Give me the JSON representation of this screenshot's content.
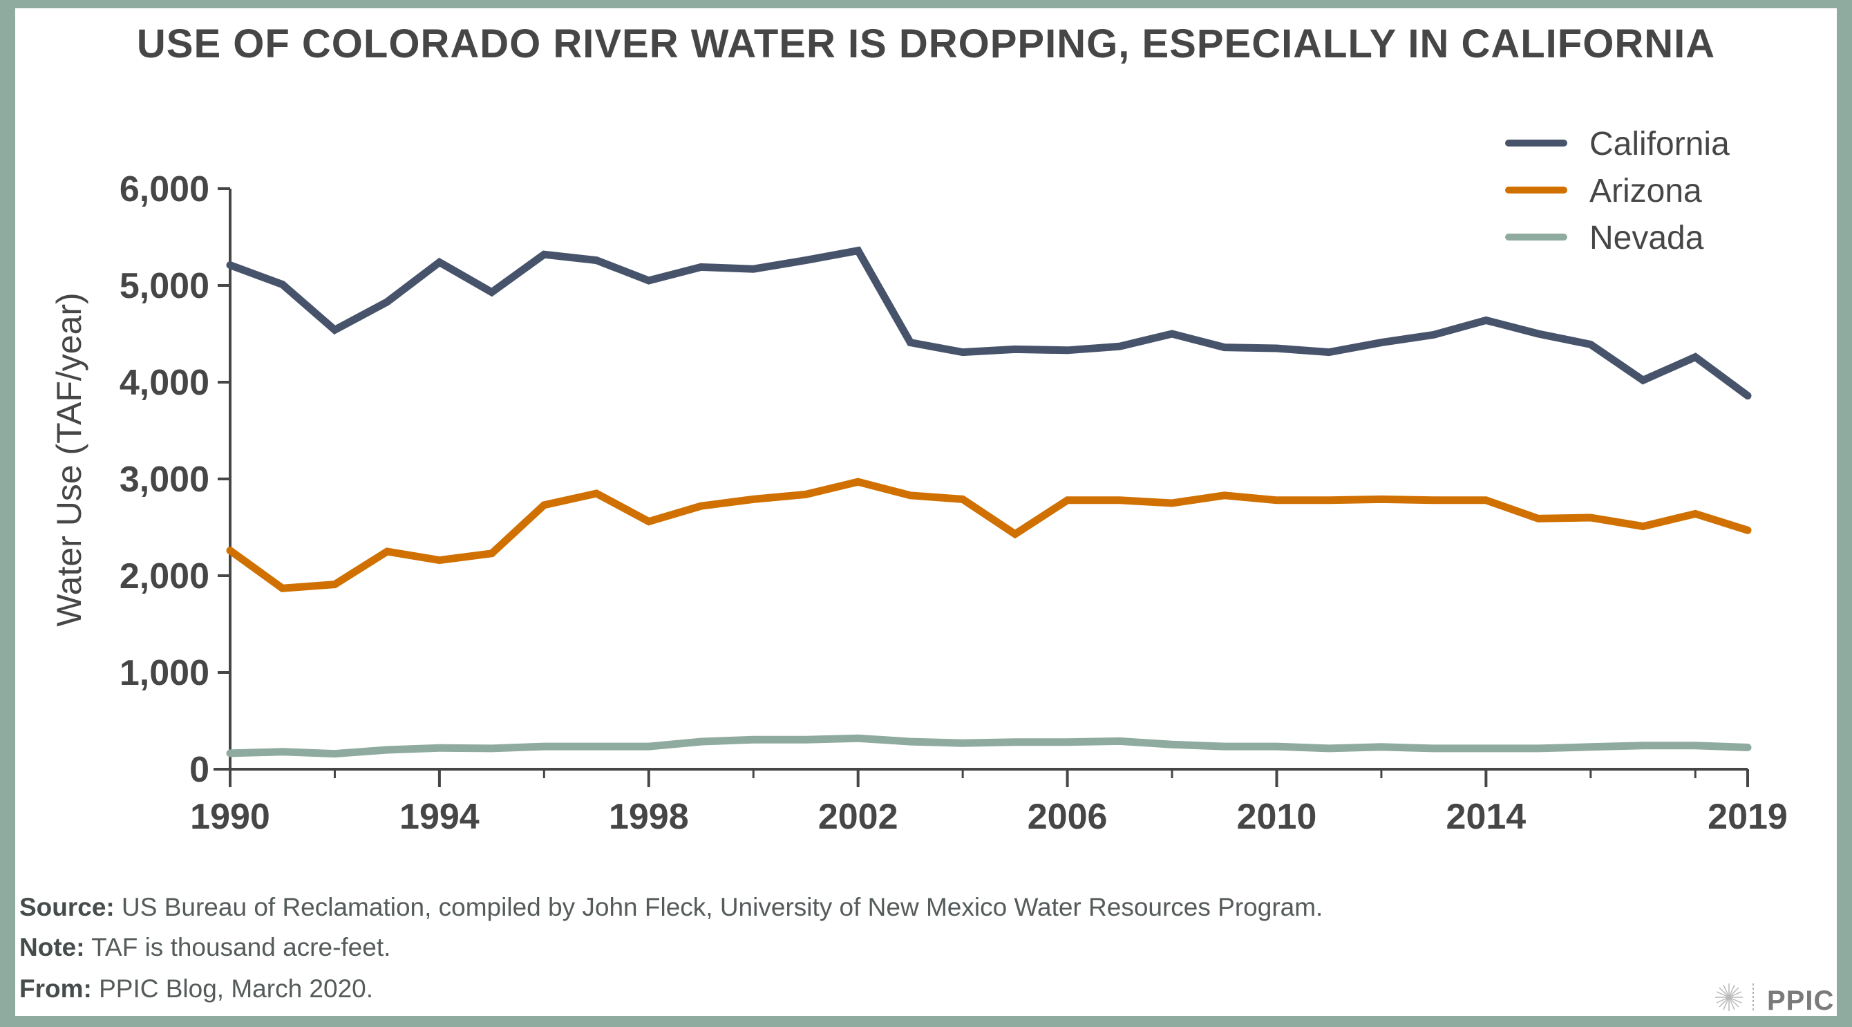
{
  "title": "USE OF COLORADO RIVER WATER IS DROPPING, ESPECIALLY IN CALIFORNIA",
  "footer": {
    "source_label": "Source:",
    "source_text": " US Bureau of Reclamation, compiled by John Fleck, University of New Mexico Water Resources Program.",
    "note_label": "Note:",
    "note_text": " TAF is thousand acre-feet.",
    "from_label": "From:",
    "from_text": " PPIC Blog, March 2020."
  },
  "logo": {
    "text": "PPIC",
    "icon": "starburst-icon"
  },
  "colors": {
    "frame": "#8faa9e",
    "axis": "#464646",
    "text": "#464646",
    "California": "#46536a",
    "Arizona": "#d07000",
    "Nevada": "#8faa9e"
  },
  "chart_data": {
    "type": "line",
    "title": "USE OF COLORADO RIVER WATER IS DROPPING, ESPECIALLY IN CALIFORNIA",
    "xlabel": "",
    "ylabel": "Water Use (TAF/year)",
    "x": [
      1990,
      1991,
      1992,
      1993,
      1994,
      1995,
      1996,
      1997,
      1998,
      1999,
      2000,
      2001,
      2002,
      2003,
      2004,
      2005,
      2006,
      2007,
      2008,
      2009,
      2010,
      2011,
      2012,
      2013,
      2014,
      2015,
      2016,
      2017,
      2018,
      2019
    ],
    "xlim": [
      1990,
      2019
    ],
    "ylim": [
      0,
      6000
    ],
    "xticks": [
      1990,
      1994,
      1998,
      2002,
      2006,
      2010,
      2014,
      2019
    ],
    "xtick_labels": [
      "1990",
      "1994",
      "1998",
      "2002",
      "2006",
      "2010",
      "2014",
      "2019"
    ],
    "minor_xticks": [
      1992,
      1996,
      2000,
      2004,
      2008,
      2012,
      2016,
      2018
    ],
    "yticks": [
      0,
      1000,
      2000,
      3000,
      4000,
      5000,
      6000
    ],
    "ytick_labels": [
      "0",
      "1,000",
      "2,000",
      "3,000",
      "4,000",
      "5,000",
      "6,000"
    ],
    "grid": false,
    "legend_position": "top-right",
    "series": [
      {
        "name": "California",
        "color": "#46536a",
        "values": [
          5210,
          5010,
          4540,
          4830,
          5240,
          4930,
          5320,
          5260,
          5050,
          5190,
          5170,
          5260,
          5360,
          4410,
          4310,
          4340,
          4330,
          4370,
          4500,
          4360,
          4350,
          4310,
          4410,
          4490,
          4640,
          4500,
          4390,
          4020,
          4260,
          3860
        ]
      },
      {
        "name": "Arizona",
        "color": "#d07000",
        "values": [
          2260,
          1870,
          1910,
          2250,
          2160,
          2230,
          2730,
          2850,
          2560,
          2720,
          2790,
          2840,
          2970,
          2830,
          2790,
          2430,
          2780,
          2780,
          2750,
          2830,
          2780,
          2780,
          2790,
          2780,
          2780,
          2590,
          2600,
          2510,
          2640,
          2470
        ]
      },
      {
        "name": "Nevada",
        "color": "#8faa9e",
        "values": [
          165,
          180,
          160,
          200,
          220,
          215,
          235,
          235,
          235,
          285,
          305,
          305,
          320,
          285,
          270,
          280,
          280,
          290,
          255,
          235,
          235,
          215,
          230,
          215,
          215,
          215,
          230,
          245,
          245,
          225
        ]
      }
    ]
  }
}
